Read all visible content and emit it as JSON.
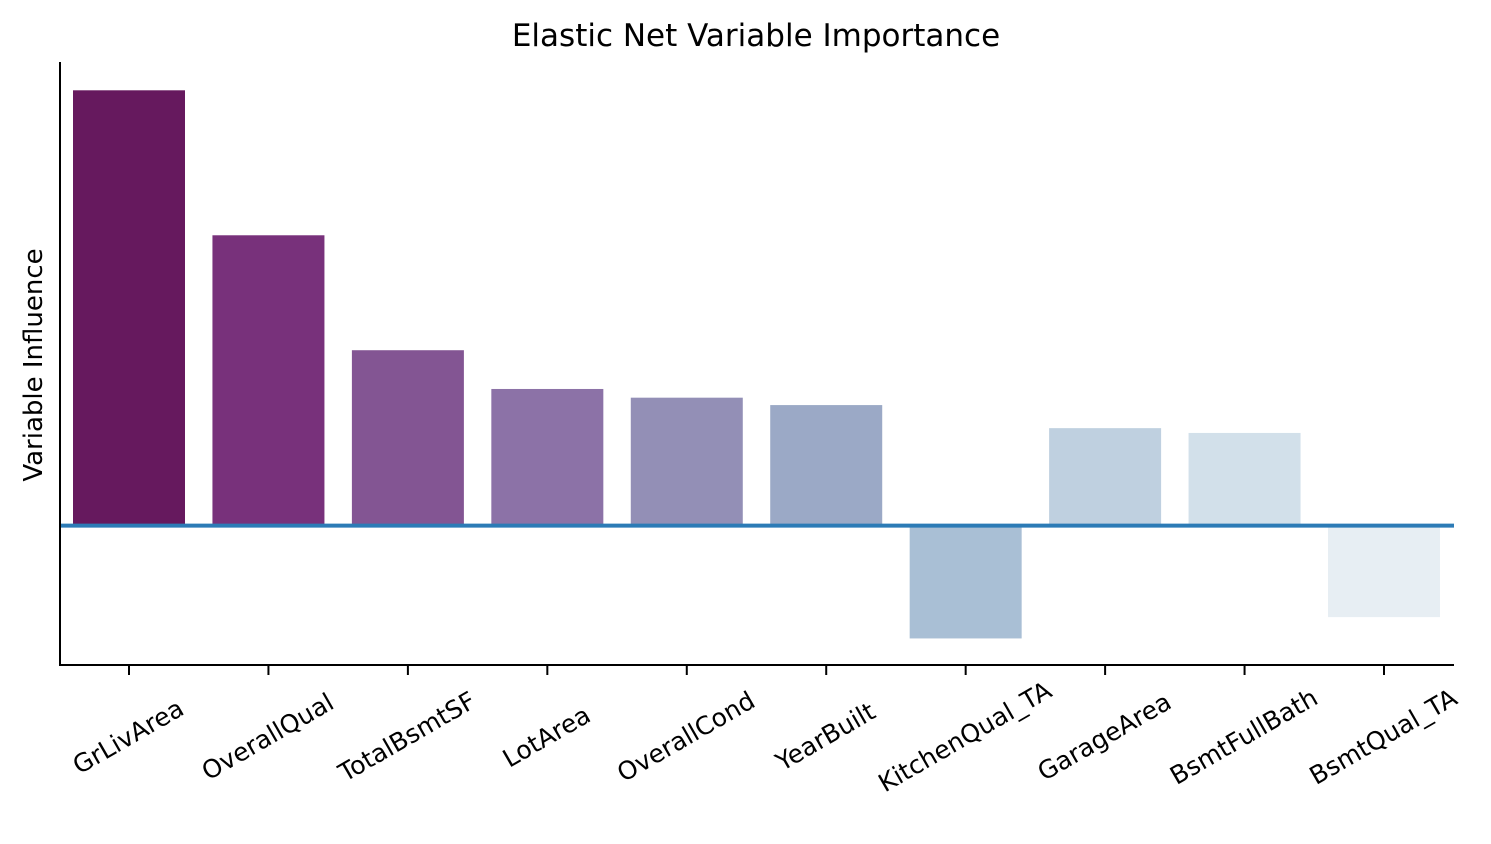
{
  "chart_data": {
    "type": "bar",
    "title": "Elastic Net Variable Importance",
    "xlabel": "",
    "ylabel": "Variable Influence",
    "categories": [
      "GrLivArea",
      "OverallQual",
      "TotalBsmtSF",
      "LotArea",
      "OverallCond",
      "YearBuilt",
      "KitchenQual_TA",
      "GarageArea",
      "BsmtFullBath",
      "BsmtQual_TA"
    ],
    "values": [
      1.0,
      0.667,
      0.403,
      0.314,
      0.294,
      0.277,
      -0.259,
      0.224,
      0.213,
      -0.21
    ],
    "ylim": [
      -0.32,
      1.065
    ],
    "y_ticks_shown": false,
    "grid": false,
    "legend": "none",
    "baseline": 0,
    "baseline_color": "#2c7bb6",
    "colors": [
      "#66195e",
      "#78317b",
      "#835593",
      "#8c72a7",
      "#938fb6",
      "#9ba9c6",
      "#a9bfd5",
      "#bfd0e0",
      "#d2e0ea",
      "#e7eef3"
    ]
  }
}
